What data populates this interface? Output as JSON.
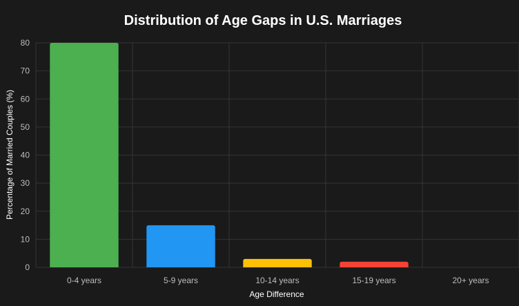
{
  "chart_data": {
    "type": "bar",
    "title": "Distribution of Age Gaps in U.S. Marriages",
    "xlabel": "Age Difference",
    "ylabel": "Percentage of Married Couples (%)",
    "categories": [
      "0-4 years",
      "5-9 years",
      "10-14 years",
      "15-19 years",
      "20+ years"
    ],
    "values": [
      80,
      15,
      3,
      2,
      0
    ],
    "ylim": [
      0,
      80
    ],
    "yticks": [
      "0",
      "10",
      "20",
      "30",
      "40",
      "50",
      "60",
      "70",
      "80"
    ],
    "bar_colors": [
      "#4caf50",
      "#2196f3",
      "#ffc107",
      "#f44336",
      "#9c27b0"
    ],
    "grid": true,
    "legend": "none"
  }
}
